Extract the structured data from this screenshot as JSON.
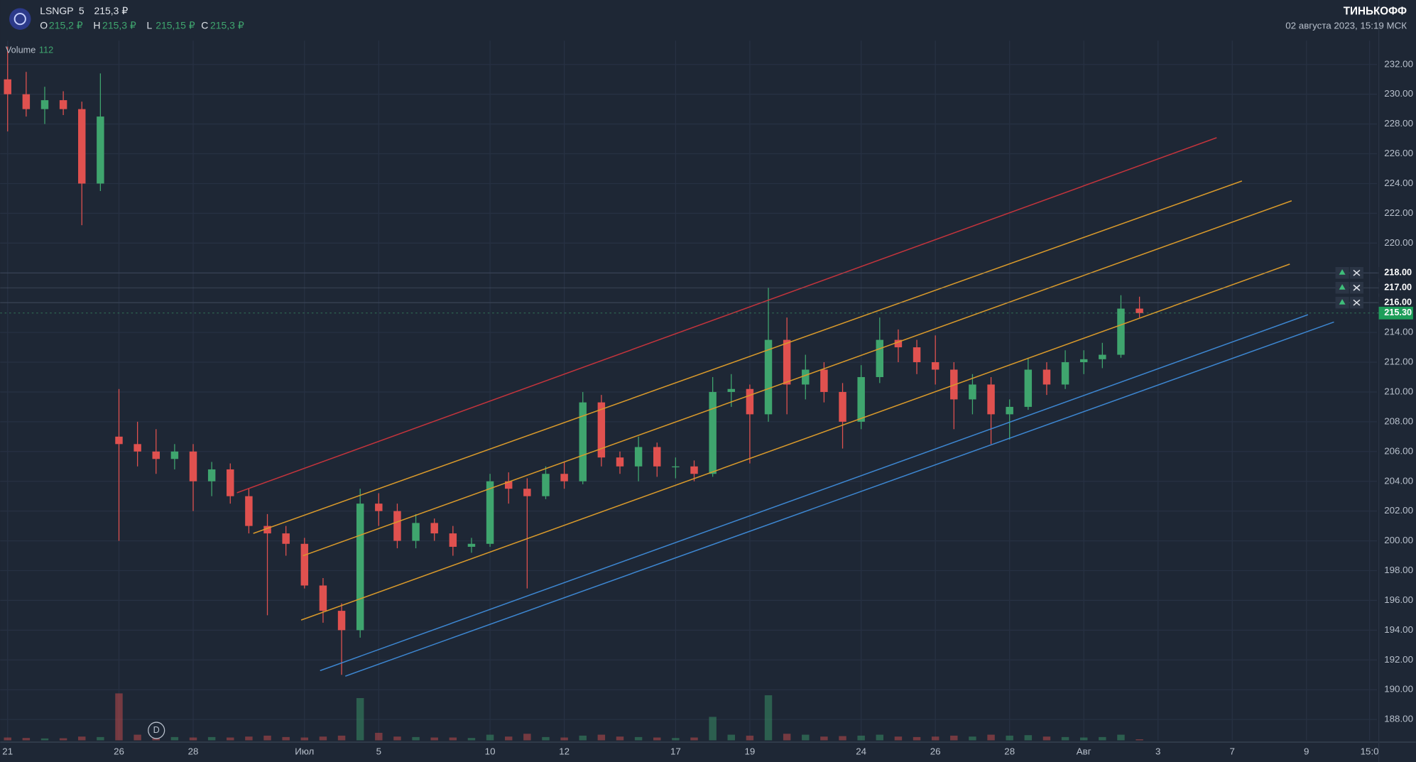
{
  "header": {
    "ticker": "LSNGP",
    "interval": "5",
    "price": "215,3 ₽",
    "ohlc": [
      {
        "key": "O",
        "value": "215,2 ₽"
      },
      {
        "key": "H",
        "value": "215,3 ₽"
      },
      {
        "key": "L",
        "value": "215,15 ₽"
      },
      {
        "key": "C",
        "value": "215,3 ₽"
      }
    ],
    "brand": "ТИНЬКОФФ",
    "datetime": "02 августа 2023, 15:19 МСК"
  },
  "chart_data": {
    "type": "candlestick",
    "up_color": "#3fa56e",
    "down_color": "#e0514f",
    "grid": true,
    "volume_label": "Volume",
    "volume_last": "112",
    "marker": "D",
    "xlim": [
      -0.2,
      36.9
    ],
    "xticks": [
      {
        "value": 0,
        "label": "21"
      },
      {
        "value": 3,
        "label": "26"
      },
      {
        "value": 5,
        "label": "28"
      },
      {
        "value": 8,
        "label": "Июл"
      },
      {
        "value": 10,
        "label": "5"
      },
      {
        "value": 13,
        "label": "10"
      },
      {
        "value": 15,
        "label": "12"
      },
      {
        "value": 18,
        "label": "17"
      },
      {
        "value": 20,
        "label": "19"
      },
      {
        "value": 23,
        "label": "24"
      },
      {
        "value": 25,
        "label": "26"
      },
      {
        "value": 27,
        "label": "28"
      },
      {
        "value": 29,
        "label": "Авг"
      },
      {
        "value": 31,
        "label": "3"
      },
      {
        "value": 33,
        "label": "7"
      },
      {
        "value": 35,
        "label": "9"
      },
      {
        "value": 36.7,
        "label": "15:0"
      }
    ],
    "ylim": [
      186.6,
      233.6
    ],
    "yticks": [
      {
        "value": 188,
        "label": "188.00"
      },
      {
        "value": 190,
        "label": "190.00"
      },
      {
        "value": 192,
        "label": "192.00"
      },
      {
        "value": 194,
        "label": "194.00"
      },
      {
        "value": 196,
        "label": "196.00"
      },
      {
        "value": 198,
        "label": "198.00"
      },
      {
        "value": 200,
        "label": "200.00"
      },
      {
        "value": 202,
        "label": "202.00"
      },
      {
        "value": 204,
        "label": "204.00"
      },
      {
        "value": 206,
        "label": "206.00"
      },
      {
        "value": 208,
        "label": "208.00"
      },
      {
        "value": 210,
        "label": "210.00"
      },
      {
        "value": 212,
        "label": "212.00"
      },
      {
        "value": 214,
        "label": "214.00"
      },
      {
        "value": 216,
        "label": "216.00"
      },
      {
        "value": 218,
        "label": "218.00"
      },
      {
        "value": 220,
        "label": "220.00"
      },
      {
        "value": 222,
        "label": "222.00"
      },
      {
        "value": 224,
        "label": "224.00"
      },
      {
        "value": 226,
        "label": "226.00"
      },
      {
        "value": 228,
        "label": "228.00"
      },
      {
        "value": 230,
        "label": "230.00"
      },
      {
        "value": 232,
        "label": "232.00"
      }
    ],
    "candles": {
      "x": [
        0,
        0.5,
        1,
        1.5,
        2,
        2.5,
        3,
        3.5,
        4,
        4.5,
        5,
        5.5,
        6,
        6.5,
        7,
        7.5,
        8,
        8.5,
        9,
        9.5,
        10,
        10.5,
        11,
        11.5,
        12,
        12.5,
        13,
        13.5,
        14,
        14.5,
        15,
        15.5,
        16,
        16.5,
        17,
        17.5,
        18,
        18.5,
        19,
        19.5,
        20,
        20.5,
        21,
        21.5,
        22,
        22.5,
        23,
        23.5,
        24,
        24.5,
        25,
        25.5,
        26,
        26.5,
        27,
        27.5,
        28,
        28.5,
        29,
        29.5,
        30,
        30.5
      ],
      "open": [
        231,
        230,
        229,
        229.6,
        229,
        224,
        207,
        206.5,
        206,
        205.5,
        206,
        204,
        204.8,
        203,
        201,
        200.5,
        199.8,
        197,
        195.3,
        194,
        202.5,
        202,
        200,
        201.2,
        200.5,
        199.6,
        199.8,
        204,
        203.5,
        203,
        204.5,
        204,
        209.3,
        205.6,
        205,
        206.3,
        205,
        205,
        204.5,
        210,
        210.2,
        208.5,
        213.5,
        210.5,
        211.5,
        210,
        208,
        211,
        213.5,
        213,
        212,
        211.5,
        209.5,
        210.5,
        208.5,
        209,
        211.5,
        210.5,
        212,
        212.2,
        212.5,
        215.6
      ],
      "high": [
        233.2,
        231.5,
        230.5,
        230.2,
        229.5,
        231.4,
        210.2,
        208,
        207.5,
        206.5,
        206.5,
        205.3,
        205.2,
        203.5,
        201.8,
        201,
        200.2,
        197.5,
        195.8,
        203.5,
        203.2,
        202.5,
        201.8,
        201.5,
        201,
        200.2,
        204.5,
        204.6,
        204.2,
        205,
        205.3,
        210,
        209.8,
        206,
        207,
        206.6,
        205.6,
        205.4,
        211,
        211.2,
        210.5,
        217,
        215,
        212.5,
        212,
        210.6,
        211.8,
        215,
        214.2,
        213.5,
        213.8,
        212,
        211.2,
        211,
        209.5,
        212.3,
        212,
        212.8,
        212.8,
        213.3,
        216.5,
        216.4
      ],
      "low": [
        227.5,
        228.5,
        228,
        228.6,
        221.2,
        223.5,
        200,
        205,
        204.5,
        204.8,
        202,
        203,
        202.5,
        200.5,
        195,
        199,
        196.8,
        194.5,
        191,
        193.5,
        201,
        199.5,
        199.5,
        200,
        199,
        199.2,
        199.6,
        202.5,
        196.8,
        202.8,
        203.5,
        203.8,
        205,
        204.5,
        204,
        204.3,
        204.2,
        204,
        204.3,
        209,
        205.2,
        208,
        208.5,
        209.5,
        209.3,
        206.2,
        207.5,
        210.6,
        212,
        211.2,
        210.5,
        207.5,
        208.5,
        206.5,
        206.8,
        208.8,
        209.8,
        210.2,
        211.2,
        211.6,
        212.3,
        215
      ],
      "close": [
        230,
        229,
        229.6,
        229,
        224,
        228.5,
        206.5,
        206,
        205.5,
        206,
        204,
        204.8,
        203,
        201,
        200.5,
        199.8,
        197,
        195.3,
        194,
        202.5,
        202,
        200,
        201.2,
        200.5,
        199.6,
        199.8,
        204,
        203.5,
        203,
        204.5,
        204,
        209.3,
        205.6,
        205,
        206.3,
        205,
        205,
        204.5,
        210,
        210.2,
        208.5,
        213.5,
        210.5,
        211.5,
        210,
        208,
        211,
        213.5,
        213,
        212,
        211.5,
        209.5,
        210.5,
        208.5,
        209,
        211.5,
        210.5,
        212,
        212.2,
        212.5,
        215.6,
        215.3
      ],
      "volume": [
        300,
        250,
        200,
        220,
        400,
        350,
        5000,
        600,
        400,
        350,
        300,
        350,
        300,
        400,
        500,
        350,
        300,
        400,
        500,
        4500,
        800,
        400,
        350,
        300,
        300,
        250,
        600,
        400,
        700,
        350,
        300,
        500,
        600,
        400,
        350,
        300,
        250,
        300,
        2500,
        600,
        500,
        4800,
        700,
        600,
        400,
        450,
        500,
        600,
        400,
        350,
        400,
        500,
        400,
        600,
        500,
        550,
        400,
        350,
        300,
        350,
        600,
        112
      ]
    },
    "trend_lines": [
      {
        "color": "#c2343c",
        "x": [
          6.18,
          32.58
        ],
        "y": [
          203.23,
          227.08
        ]
      },
      {
        "color": "#d99a2b",
        "x": [
          6.62,
          33.26
        ],
        "y": [
          200.5,
          224.17
        ]
      },
      {
        "color": "#d99a2b",
        "x": [
          7.96,
          34.6
        ],
        "y": [
          199.0,
          222.84
        ]
      },
      {
        "color": "#d99a2b",
        "x": [
          7.91,
          34.55
        ],
        "y": [
          194.68,
          218.59
        ]
      },
      {
        "color": "#3d86d0",
        "x": [
          8.42,
          35.04
        ],
        "y": [
          191.28,
          215.19
        ]
      },
      {
        "color": "#3d86d0",
        "x": [
          9.1,
          35.74
        ],
        "y": [
          190.91,
          214.7
        ]
      }
    ],
    "alerts": [
      {
        "value": 218,
        "label": "218.00"
      },
      {
        "value": 217,
        "label": "217.00"
      },
      {
        "value": 216,
        "label": "216.00"
      }
    ],
    "last_price": {
      "value": 215.3,
      "label": "215.30"
    }
  }
}
